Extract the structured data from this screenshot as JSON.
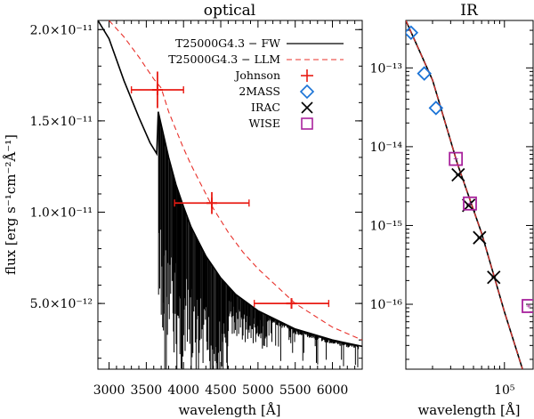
{
  "chart_data": [
    {
      "type": "line",
      "title": "optical",
      "xlabel": "wavelength [Å]",
      "ylabel": "flux [erg s⁻¹cm⁻²Å⁻¹]",
      "xlim": [
        2850,
        6400
      ],
      "ylim": [
        1.4e-12,
        2.05e-11
      ],
      "xticks": [
        "3000",
        "3500",
        "4000",
        "4500",
        "5000",
        "5500",
        "6000"
      ],
      "xtick_values": [
        3000,
        3500,
        4000,
        4500,
        5000,
        5500,
        6000
      ],
      "yticks": [
        "2.0×10⁻¹¹",
        "1.5×10⁻¹¹",
        "1.0×10⁻¹¹",
        "5.0×10⁻¹²"
      ],
      "ytick_values": [
        2e-11,
        1.5e-11,
        1e-11,
        5e-12
      ],
      "legend_position": "top-right",
      "legend": [
        {
          "label": "T25000G4.3 − FW",
          "style": "solid-black"
        },
        {
          "label": "T25000G4.3 − LLM",
          "style": "dashed-red"
        },
        {
          "label": "Johnson",
          "style": "plus-red"
        },
        {
          "label": "2MASS",
          "style": "diamond-blue"
        },
        {
          "label": "IRAC",
          "style": "cross-black"
        },
        {
          "label": "WISE",
          "style": "square-purple"
        }
      ],
      "series": [
        {
          "name": "T25000G4.3 − FW",
          "x": [
            2850,
            3000,
            3200,
            3400,
            3550,
            3640,
            3660,
            3700,
            3800,
            3900,
            4000,
            4100,
            4200,
            4300,
            4400,
            4500,
            4700,
            5000,
            5500,
            6000,
            6400
          ],
          "y": [
            2.05e-11,
            1.95e-11,
            1.72e-11,
            1.52e-11,
            1.38e-11,
            1.32e-11,
            1.55e-11,
            1.48e-11,
            1.3e-11,
            1.15e-11,
            1.03e-11,
            9.2e-12,
            8.4e-12,
            7.6e-12,
            7e-12,
            6.4e-12,
            5.5e-12,
            4.6e-12,
            3.6e-12,
            3e-12,
            2.65e-12
          ]
        },
        {
          "name": "T25000G4.3 − LLM",
          "x": [
            3000,
            3200,
            3400,
            3600,
            3700,
            3800,
            3900,
            4000,
            4100,
            4200,
            4400,
            4600,
            4800,
            5000,
            5500,
            6000,
            6400
          ],
          "y": [
            2.05e-11,
            1.96e-11,
            1.85e-11,
            1.73e-11,
            1.68e-11,
            1.55e-11,
            1.45e-11,
            1.35e-11,
            1.26e-11,
            1.18e-11,
            1.02e-11,
            8.9e-12,
            7.8e-12,
            6.9e-12,
            5e-12,
            3.7e-12,
            3e-12
          ]
        }
      ],
      "points": [
        {
          "name": "Johnson",
          "x": 3650,
          "y": 1.67e-11,
          "xerr": 350,
          "yerr": 1e-12
        },
        {
          "name": "Johnson",
          "x": 4380,
          "y": 1.05e-11,
          "xerr": 500,
          "yerr": 6e-13
        },
        {
          "name": "Johnson",
          "x": 5450,
          "y": 5e-12,
          "xerr": 500,
          "yerr": 2.5e-13
        }
      ]
    },
    {
      "type": "scatter",
      "title": "IR",
      "xlabel": "wavelength [Å]",
      "xscale": "log",
      "yscale": "log",
      "xlim": [
        11000,
        190000
      ],
      "ylim": [
        1.5e-17,
        4e-13
      ],
      "xticks": [
        "10⁵"
      ],
      "xtick_values": [
        100000
      ],
      "yticks": [
        "10⁻¹³",
        "10⁻¹⁴",
        "10⁻¹⁵",
        "10⁻¹⁶"
      ],
      "ytick_values": [
        1e-13,
        1e-14,
        1e-15,
        1e-16
      ],
      "series": [
        {
          "name": "T25000G4.3 − FW",
          "x": [
            11000,
            20000,
            35000,
            60000,
            100000,
            150000
          ],
          "y": [
            4e-13,
            7e-14,
            6e-15,
            8e-16,
            8e-17,
            1.5e-17
          ]
        },
        {
          "name": "T25000G4.3 − LLM",
          "x": [
            11000,
            20000,
            35000,
            60000,
            100000,
            150000
          ],
          "y": [
            4e-13,
            7e-14,
            6e-15,
            8e-16,
            8e-17,
            1.5e-17
          ]
        }
      ],
      "points": [
        {
          "name": "2MASS",
          "x": 12350,
          "y": 2.8e-13
        },
        {
          "name": "2MASS",
          "x": 16620,
          "y": 8.5e-14
        },
        {
          "name": "2MASS",
          "x": 21590,
          "y": 3.1e-14
        },
        {
          "name": "IRAC",
          "x": 35500,
          "y": 4.4e-15
        },
        {
          "name": "IRAC",
          "x": 44930,
          "y": 1.8e-15
        },
        {
          "name": "IRAC",
          "x": 57310,
          "y": 7e-16
        },
        {
          "name": "IRAC",
          "x": 78720,
          "y": 2.2e-16
        },
        {
          "name": "WISE",
          "x": 33680,
          "y": 7e-15
        },
        {
          "name": "WISE",
          "x": 46180,
          "y": 1.9e-15
        },
        {
          "name": "WISE",
          "x": 172000,
          "y": 9.5e-17
        }
      ]
    }
  ],
  "colors": {
    "fw": "#000000",
    "llm": "#e8302a",
    "johnson": "#e81c14",
    "twomass": "#1a73d6",
    "irac": "#000000",
    "wise": "#a8229c"
  }
}
